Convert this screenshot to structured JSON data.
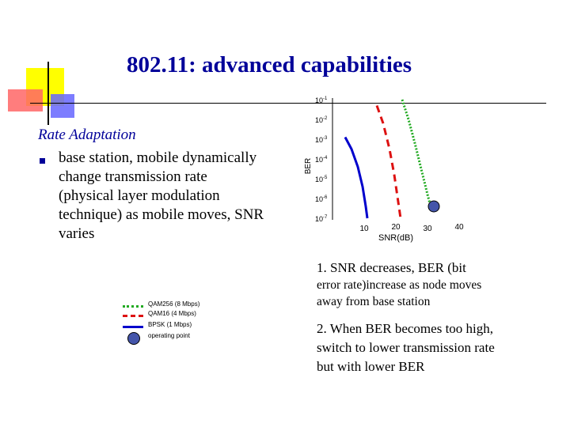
{
  "slide": {
    "title": "802.11: advanced capabilities",
    "section_heading": "Rate Adaptation",
    "bullet": "base station, mobile dynamically change transmission rate (physical layer modulation technique) as mobile moves, SNR varies",
    "notes": {
      "note1_part1": "1. SNR decreases, BER (bit",
      "note1_part2": "error rate)increase as node moves away from base station",
      "note2": "2. When BER becomes too high, switch to lower transmission rate but with lower BER"
    }
  },
  "legend": {
    "qam256": "QAM256 (8 Mbps)",
    "qam16": "QAM16 (4 Mbps)",
    "bpsk": "BPSK (1 Mbps)",
    "operating_point": "operating point"
  },
  "colors": {
    "title": "#000099",
    "qam256": "#22aa22",
    "qam16": "#dd1111",
    "bpsk": "#0000cc",
    "operating_point": "#4455aa"
  },
  "chart_data": {
    "type": "line",
    "xlabel": "SNR(dB)",
    "ylabel": "BER",
    "x_ticks": [
      10,
      20,
      30,
      40
    ],
    "y_tick_exponents": [
      -1,
      -2,
      -3,
      -4,
      -5,
      -6,
      -7
    ],
    "y_scale": "log",
    "xlim": [
      0,
      40
    ],
    "ylim_exponent": [
      -7,
      -1
    ],
    "series": [
      {
        "name": "QAM256 (8 Mbps)",
        "style": "dotted",
        "x": [
          22,
          24,
          26,
          28,
          30,
          31
        ],
        "y_exp": [
          -1.0,
          -2.0,
          -3.2,
          -4.5,
          -5.8,
          -6.4
        ]
      },
      {
        "name": "QAM16 (4 Mbps)",
        "style": "dashed",
        "x": [
          14,
          16,
          18,
          19.5,
          20.5,
          21.5
        ],
        "y_exp": [
          -1.3,
          -2.2,
          -3.5,
          -4.8,
          -5.9,
          -7.0
        ]
      },
      {
        "name": "BPSK (1 Mbps)",
        "style": "solid",
        "x": [
          4,
          6,
          8,
          9.5,
          10.5,
          11
        ],
        "y_exp": [
          -2.9,
          -3.5,
          -4.4,
          -5.4,
          -6.4,
          -7.0
        ]
      }
    ],
    "operating_point": {
      "x": 32,
      "y_exp": -6.4
    }
  }
}
